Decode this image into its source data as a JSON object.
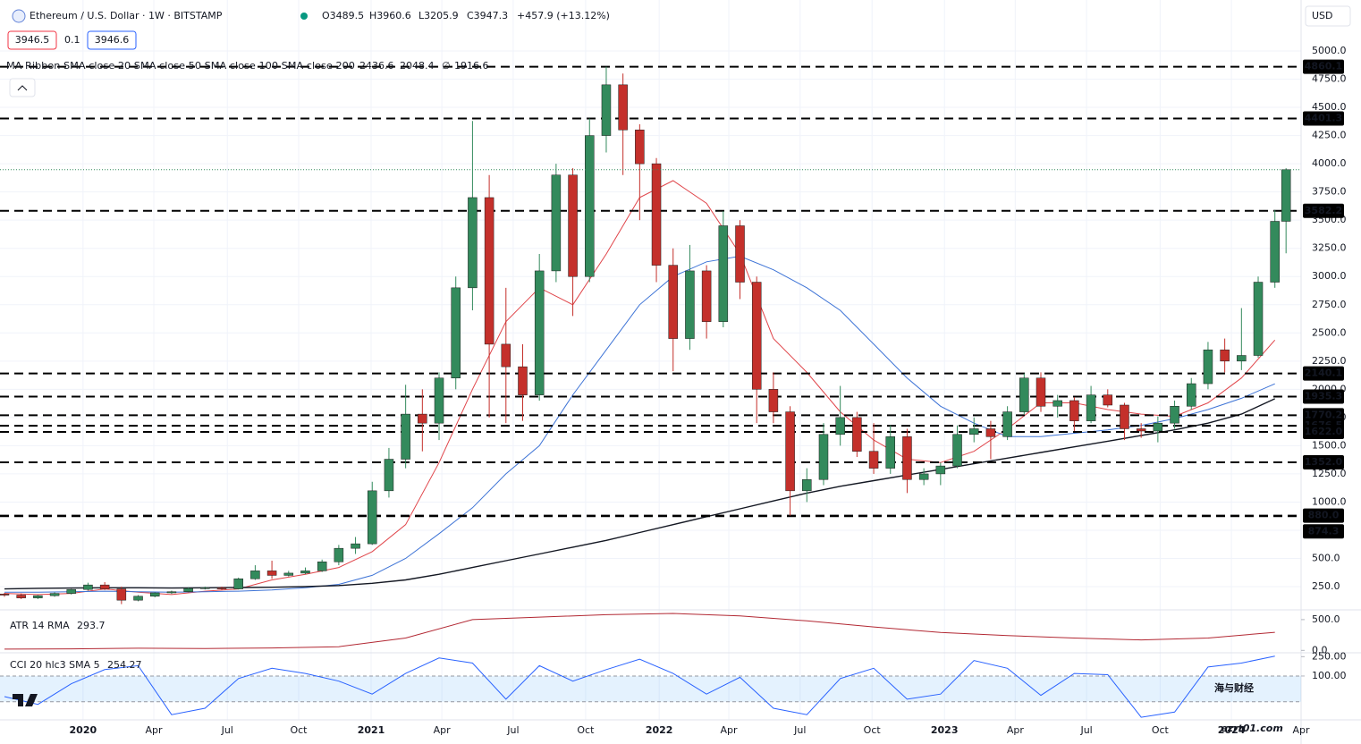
{
  "chart_data": {
    "type": "candlestick",
    "title": "Ethereum / U.S. Dollar · 1W · BITSTAMP",
    "ohlc_texts": [
      "O3489.5",
      "H3960.6",
      "L3205.9",
      "C3947.3",
      "+457.9 (+13.12%)"
    ],
    "bid": "3946.5",
    "spread": "0.1",
    "ask": "3946.6",
    "currency": "USD",
    "up_color": "#338a5c",
    "down_color": "#c4302b",
    "x": [
      0,
      3,
      6,
      9,
      12,
      15,
      18,
      21,
      24,
      27,
      30,
      33,
      36,
      39,
      42,
      45,
      48,
      51,
      54,
      57,
      60,
      63,
      66,
      69,
      72,
      75,
      78,
      81,
      84,
      87,
      90,
      93,
      96,
      99,
      102,
      105,
      108,
      111,
      114,
      117,
      120,
      123,
      126,
      129,
      132,
      135,
      138,
      141,
      144,
      147,
      150,
      153,
      156,
      159,
      162,
      165,
      168,
      171,
      174,
      177,
      180,
      183,
      186,
      189,
      192,
      195,
      198,
      201,
      204,
      207,
      210,
      213,
      216,
      219,
      222,
      225,
      228,
      230
    ],
    "open": [
      185,
      175,
      150,
      170,
      190,
      225,
      265,
      230,
      130,
      165,
      195,
      205,
      235,
      240,
      230,
      320,
      390,
      350,
      370,
      390,
      470,
      590,
      630,
      1100,
      1380,
      1780,
      1700,
      2100,
      2900,
      3700,
      2400,
      2200,
      1950,
      3050,
      3900,
      3000,
      4250,
      4700,
      4300,
      4000,
      3100,
      2450,
      3050,
      2600,
      3450,
      2950,
      2000,
      1800,
      1100,
      1200,
      1600,
      1750,
      1450,
      1300,
      1580,
      1200,
      1250,
      1320,
      1600,
      1650,
      1580,
      1800,
      2100,
      1850,
      1900,
      1720,
      1950,
      1860,
      1650,
      1630,
      1700,
      1850,
      2050,
      2350,
      2250,
      2300,
      2950,
      3489.5
    ],
    "high": [
      195,
      190,
      175,
      200,
      230,
      285,
      290,
      250,
      175,
      200,
      215,
      245,
      250,
      250,
      330,
      440,
      480,
      390,
      420,
      490,
      620,
      690,
      1180,
      1480,
      2040,
      2000,
      2150,
      3000,
      4380,
      3900,
      2900,
      2400,
      3200,
      4000,
      3960,
      4400,
      4860,
      4800,
      4350,
      4050,
      3250,
      3280,
      3100,
      3580,
      3500,
      3000,
      2150,
      1850,
      1300,
      1700,
      2030,
      1800,
      1700,
      1680,
      1650,
      1300,
      1350,
      1680,
      1750,
      1720,
      1850,
      2140,
      2150,
      1950,
      1930,
      2030,
      2000,
      1880,
      1700,
      1760,
      1900,
      2100,
      2420,
      2450,
      2720,
      3000,
      3590,
      3960.6
    ],
    "low": [
      160,
      140,
      140,
      160,
      180,
      215,
      220,
      95,
      120,
      155,
      185,
      200,
      225,
      220,
      225,
      310,
      320,
      340,
      360,
      380,
      440,
      540,
      620,
      1040,
      1300,
      1450,
      1550,
      2000,
      2700,
      1750,
      1700,
      1720,
      1900,
      2950,
      2650,
      2950,
      4100,
      3900,
      3500,
      2950,
      2160,
      2350,
      2450,
      2550,
      2800,
      1700,
      1700,
      880,
      1000,
      1150,
      1500,
      1400,
      1250,
      1250,
      1080,
      1150,
      1150,
      1300,
      1530,
      1380,
      1550,
      1780,
      1800,
      1750,
      1630,
      1700,
      1840,
      1550,
      1570,
      1530,
      1650,
      1820,
      2000,
      2150,
      2170,
      2280,
      2900,
      3205.9
    ],
    "close": [
      175,
      150,
      170,
      190,
      225,
      265,
      230,
      130,
      165,
      195,
      205,
      235,
      240,
      230,
      320,
      390,
      350,
      370,
      390,
      470,
      590,
      630,
      1100,
      1380,
      1780,
      1700,
      2100,
      2900,
      3700,
      2400,
      2200,
      1950,
      3050,
      3900,
      3000,
      4250,
      4700,
      4300,
      4000,
      3100,
      2450,
      3050,
      2600,
      3450,
      2950,
      2000,
      1800,
      1100,
      1200,
      1600,
      1750,
      1450,
      1300,
      1580,
      1200,
      1250,
      1320,
      1600,
      1650,
      1580,
      1800,
      2100,
      1850,
      1900,
      1720,
      1950,
      1860,
      1650,
      1630,
      1700,
      1850,
      2050,
      2350,
      2250,
      2300,
      2950,
      3489.5,
      3947.3
    ],
    "ma_legend": "MA Ribbon SMA close 20 SMA close 50 SMA close 100 SMA close 200",
    "ma_empty": "∅",
    "ma": [
      {
        "color": "#e0454a",
        "legend_value": "2436.6",
        "x": [
          0,
          6,
          12,
          18,
          24,
          30,
          36,
          42,
          48,
          54,
          60,
          66,
          72,
          78,
          84,
          90,
          96,
          102,
          108,
          114,
          120,
          126,
          132,
          138,
          144,
          150,
          156,
          162,
          168,
          174,
          180,
          186,
          192,
          198,
          204,
          210,
          216,
          222,
          228
        ],
        "values": [
          190,
          180,
          190,
          230,
          200,
          180,
          210,
          230,
          310,
          360,
          420,
          560,
          800,
          1350,
          2000,
          2600,
          2900,
          2750,
          3200,
          3700,
          3850,
          3650,
          3200,
          2450,
          2150,
          1800,
          1550,
          1380,
          1350,
          1450,
          1650,
          1880,
          1880,
          1820,
          1780,
          1760,
          1880,
          2100,
          2436.6
        ]
      },
      {
        "color": "#3d73d6",
        "legend_value": "2048.4",
        "x": [
          0,
          6,
          12,
          18,
          24,
          30,
          36,
          42,
          48,
          54,
          60,
          66,
          72,
          78,
          84,
          90,
          96,
          102,
          108,
          114,
          120,
          126,
          132,
          138,
          144,
          150,
          156,
          162,
          168,
          174,
          180,
          186,
          192,
          198,
          204,
          210,
          216,
          222,
          228
        ],
        "values": [
          200,
          200,
          205,
          210,
          205,
          200,
          205,
          210,
          220,
          240,
          270,
          350,
          500,
          720,
          950,
          1250,
          1500,
          1950,
          2350,
          2750,
          3000,
          3130,
          3180,
          3060,
          2900,
          2700,
          2400,
          2100,
          1850,
          1700,
          1580,
          1580,
          1610,
          1640,
          1680,
          1740,
          1820,
          1920,
          2048.4
        ]
      },
      {
        "color": "#131722",
        "legend_value": "1916.6",
        "x": [
          0,
          6,
          12,
          18,
          24,
          30,
          36,
          42,
          48,
          54,
          60,
          66,
          72,
          78,
          84,
          90,
          96,
          102,
          108,
          114,
          120,
          126,
          132,
          138,
          144,
          150,
          156,
          162,
          168,
          174,
          180,
          186,
          192,
          198,
          204,
          210,
          216,
          222,
          228
        ],
        "values": [
          230,
          235,
          238,
          240,
          240,
          238,
          240,
          242,
          245,
          250,
          260,
          280,
          310,
          360,
          420,
          480,
          540,
          600,
          660,
          730,
          800,
          870,
          940,
          1010,
          1080,
          1140,
          1190,
          1240,
          1290,
          1340,
          1390,
          1440,
          1490,
          1540,
          1590,
          1640,
          1700,
          1780,
          1916.6
        ]
      }
    ],
    "levels": [
      {
        "value": 4860.1,
        "label": "4860.1"
      },
      {
        "value": 4401.3,
        "label": "4401.3"
      },
      {
        "value": 3582.2,
        "label": "3582.2"
      },
      {
        "value": 2140.1,
        "label": "2140.1"
      },
      {
        "value": 1935.3,
        "label": "1935.3"
      },
      {
        "value": 1770.2,
        "label": "1770.2"
      },
      {
        "value": 1676.5,
        "label": "1676.5"
      },
      {
        "value": 1622.0,
        "label": "1622.0"
      },
      {
        "value": 1352.0,
        "label": "1352.0"
      },
      {
        "value": 880.0,
        "label": "880.0"
      },
      {
        "value": 874.3,
        "label": "874.3"
      }
    ],
    "xlim": [
      -0.8,
      232.7
    ],
    "ylim": [
      60,
      5452
    ],
    "yticks": [
      {
        "value": 250,
        "label": "250.0"
      },
      {
        "value": 500,
        "label": "500.0"
      },
      {
        "value": 750,
        "label": "750.0"
      },
      {
        "value": 1000,
        "label": "1000.0"
      },
      {
        "value": 1250,
        "label": "1250.0"
      },
      {
        "value": 1500,
        "label": "1500.0"
      },
      {
        "value": 1750,
        "label": "1750.0"
      },
      {
        "value": 2000,
        "label": "2000.0"
      },
      {
        "value": 2250,
        "label": "2250.0"
      },
      {
        "value": 2500,
        "label": "2500.0"
      },
      {
        "value": 2750,
        "label": "2750.0"
      },
      {
        "value": 3000,
        "label": "3000.0"
      },
      {
        "value": 3250,
        "label": "3250.0"
      },
      {
        "value": 3500,
        "label": "3500.0"
      },
      {
        "value": 3750,
        "label": "3750.0"
      },
      {
        "value": 4000,
        "label": "4000.0"
      },
      {
        "value": 4250,
        "label": "4250.0"
      },
      {
        "value": 4500,
        "label": "4500.0"
      },
      {
        "value": 4750,
        "label": "4750.0"
      },
      {
        "value": 5000,
        "label": "5000.0"
      }
    ],
    "xticks": [
      {
        "value": 14.1,
        "label": "2020"
      },
      {
        "value": 26.8,
        "label": "Apr"
      },
      {
        "value": 40,
        "label": "Jul"
      },
      {
        "value": 52.8,
        "label": "Oct"
      },
      {
        "value": 65.8,
        "label": "2021"
      },
      {
        "value": 78.5,
        "label": "Apr"
      },
      {
        "value": 91.3,
        "label": "Jul"
      },
      {
        "value": 104.3,
        "label": "Oct"
      },
      {
        "value": 117.5,
        "label": "2022"
      },
      {
        "value": 130,
        "label": "Apr"
      },
      {
        "value": 142.8,
        "label": "Jul"
      },
      {
        "value": 155.7,
        "label": "Oct"
      },
      {
        "value": 168.7,
        "label": "2023"
      },
      {
        "value": 181.4,
        "label": "Apr"
      },
      {
        "value": 194.2,
        "label": "Jul"
      },
      {
        "value": 207.4,
        "label": "Oct"
      },
      {
        "value": 220.2,
        "label": "2024"
      },
      {
        "value": 232.7,
        "label": "Apr"
      }
    ],
    "atr": {
      "title": "ATR 14 RMA",
      "value_text": "293.7",
      "color": "#b22833",
      "ylim": [
        -10,
        600
      ],
      "yticks": [
        {
          "value": 0,
          "label": "0.0"
        },
        {
          "value": 500,
          "label": "500.0"
        }
      ],
      "x": [
        0,
        12,
        24,
        36,
        48,
        60,
        72,
        84,
        96,
        108,
        120,
        132,
        144,
        156,
        168,
        180,
        192,
        204,
        216,
        228
      ],
      "values": [
        20,
        25,
        35,
        30,
        40,
        60,
        200,
        500,
        540,
        580,
        600,
        560,
        480,
        380,
        290,
        240,
        200,
        170,
        200,
        293.7
      ]
    },
    "cci": {
      "title": "CCI 20 hlc3 SMA 5",
      "value_text": "254.27",
      "color": "#2962ff",
      "ylim": [
        -240,
        280
      ],
      "band": [
        100,
        -100
      ],
      "yticks": [
        {
          "value": 250,
          "label": "250.00"
        },
        {
          "value": 100,
          "label": "100.00"
        }
      ],
      "x": [
        0,
        6,
        12,
        18,
        24,
        30,
        36,
        42,
        48,
        54,
        60,
        66,
        72,
        78,
        84,
        90,
        96,
        102,
        108,
        114,
        120,
        126,
        132,
        138,
        144,
        150,
        156,
        162,
        168,
        174,
        180,
        186,
        192,
        198,
        204,
        210,
        216,
        222,
        228
      ],
      "values": [
        -60,
        -120,
        40,
        150,
        180,
        -200,
        -150,
        80,
        160,
        120,
        60,
        -40,
        120,
        240,
        200,
        -80,
        180,
        60,
        150,
        230,
        120,
        -40,
        90,
        -150,
        -200,
        80,
        160,
        -80,
        -40,
        220,
        160,
        -50,
        120,
        110,
        -220,
        -180,
        170,
        200,
        254.27
      ]
    },
    "watermark": [
      "海与财经",
      "ezrt01.com"
    ]
  }
}
